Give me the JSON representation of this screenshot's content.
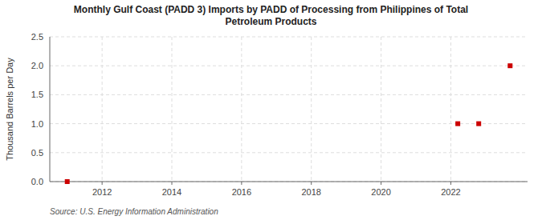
{
  "chart_data": {
    "type": "scatter",
    "title": "Monthly Gulf Coast (PADD 3) Imports by PADD of Processing from Philippines of Total\nPetroleum Products",
    "ylabel": "Thousand Barrels per Day",
    "source": "Source: U.S. Energy Information Administration",
    "x": [
      2011.0,
      2022.2,
      2022.8,
      2023.7
    ],
    "values": [
      0.0,
      1.0,
      1.0,
      2.0
    ],
    "color": "#cc0000",
    "marker": "square",
    "xlim": [
      2010.5,
      2024.2
    ],
    "xticks": [
      2012,
      2014,
      2016,
      2018,
      2020,
      2022
    ],
    "ylim": [
      0.0,
      2.5
    ],
    "yticks": [
      {
        "value": 0.0,
        "label": "0.0"
      },
      0.5,
      {
        "value": 1.0,
        "label": "1.0"
      },
      1.5,
      {
        "value": 2.0,
        "label": "2.0"
      },
      2.5
    ],
    "grid": true
  }
}
